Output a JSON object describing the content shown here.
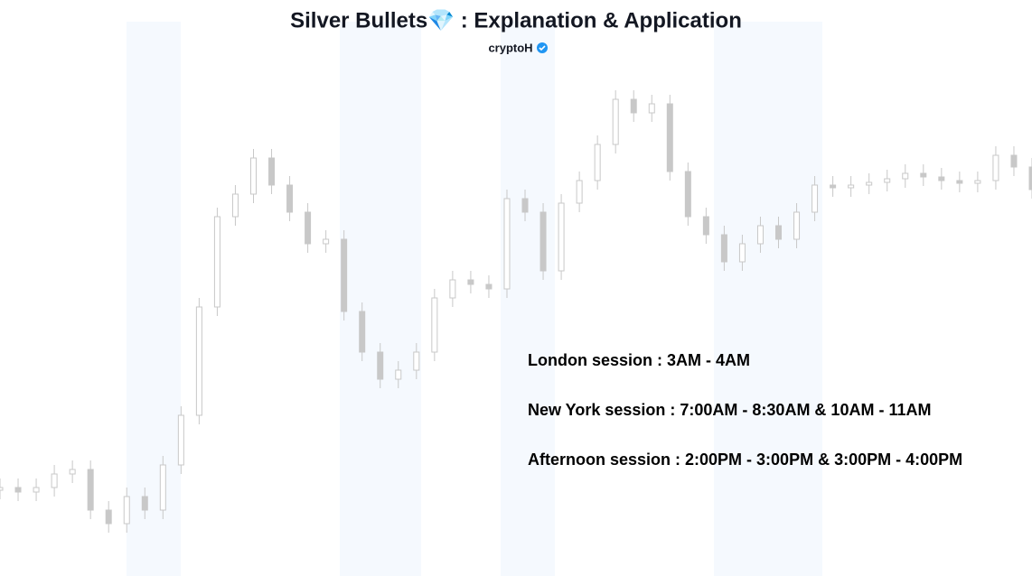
{
  "chart_data": {
    "type": "candlestick",
    "title": "Silver Bullets💎 : Explanation & Application",
    "subtitle": "cryptoH",
    "annotations": [
      "London session : 3AM - 4AM",
      "New York session : 7:00AM - 8:30AM & 10AM - 11AM",
      "Afternoon session : 2:00PM - 3:00PM & 3:00PM - 4:00PM"
    ],
    "color": "#c8c8c8",
    "ylim": [
      0,
      638
    ],
    "open": [
      95,
      98,
      93,
      98,
      113,
      118,
      73,
      58,
      88,
      73,
      123,
      178,
      298,
      398,
      423,
      463,
      433,
      403,
      368,
      373,
      293,
      248,
      218,
      228,
      248,
      308,
      328,
      323,
      318,
      418,
      403,
      338,
      413,
      438,
      478,
      528,
      513,
      523,
      448,
      398,
      378,
      348,
      368,
      388,
      373,
      403,
      433,
      430,
      433,
      436,
      440,
      446,
      442,
      438,
      435,
      438,
      466,
      453
    ],
    "high": [
      108,
      108,
      108,
      123,
      128,
      128,
      83,
      98,
      98,
      133,
      188,
      308,
      408,
      433,
      473,
      473,
      443,
      413,
      383,
      383,
      303,
      258,
      238,
      258,
      318,
      338,
      338,
      333,
      428,
      428,
      413,
      423,
      448,
      488,
      538,
      538,
      533,
      533,
      458,
      408,
      388,
      378,
      398,
      398,
      413,
      443,
      443,
      443,
      446,
      450,
      456,
      456,
      452,
      448,
      448,
      476,
      476,
      463
    ],
    "low": [
      85,
      83,
      83,
      88,
      103,
      63,
      48,
      48,
      63,
      63,
      113,
      168,
      288,
      388,
      413,
      423,
      393,
      358,
      358,
      283,
      238,
      208,
      208,
      218,
      238,
      298,
      313,
      308,
      308,
      393,
      328,
      328,
      403,
      428,
      468,
      503,
      503,
      438,
      388,
      368,
      338,
      338,
      358,
      363,
      363,
      393,
      420,
      420,
      423,
      426,
      430,
      432,
      428,
      425,
      425,
      428,
      443,
      418
    ],
    "close": [
      98,
      93,
      98,
      113,
      118,
      73,
      58,
      88,
      73,
      123,
      178,
      298,
      398,
      423,
      463,
      433,
      403,
      368,
      373,
      293,
      248,
      218,
      228,
      248,
      308,
      328,
      323,
      318,
      418,
      403,
      338,
      413,
      438,
      478,
      528,
      513,
      523,
      448,
      398,
      378,
      348,
      368,
      388,
      373,
      403,
      433,
      430,
      433,
      436,
      440,
      446,
      442,
      438,
      435,
      438,
      466,
      453,
      428
    ]
  }
}
